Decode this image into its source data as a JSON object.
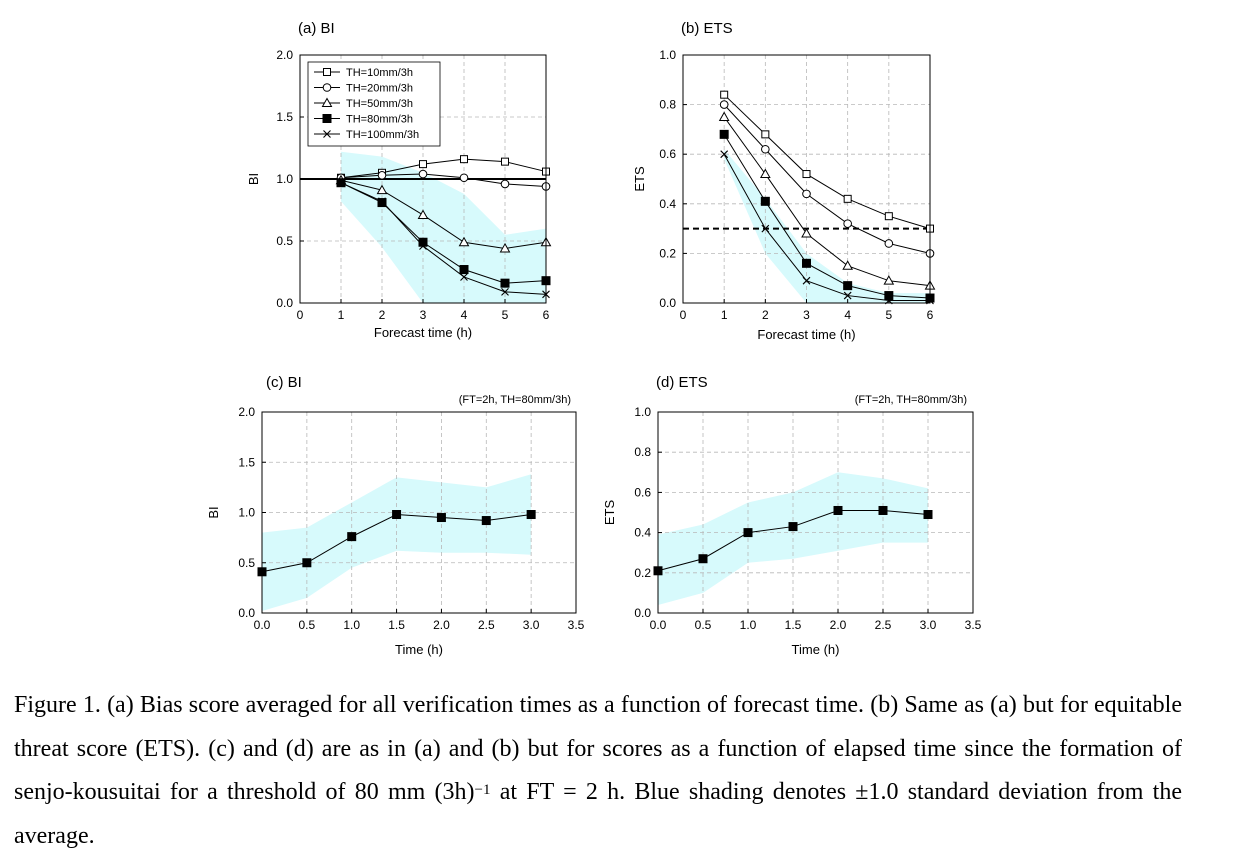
{
  "chart_data": [
    {
      "type": "line",
      "title": "(a) BI",
      "xlabel": "Forecast time (h)",
      "ylabel": "BI",
      "xlim": [
        0,
        6
      ],
      "ylim": [
        0,
        2
      ],
      "xticks": [
        "0",
        "1",
        "2",
        "3",
        "4",
        "5",
        "6"
      ],
      "yticks": [
        "0.0",
        "0.5",
        "1.0",
        "1.5",
        "2.0"
      ],
      "grid": true,
      "legend": "top-left",
      "x": [
        1,
        2,
        3,
        4,
        5,
        6
      ],
      "reference_line": 1.0,
      "shading": {
        "x": [
          1,
          2,
          3,
          4,
          5,
          6
        ],
        "upper": [
          1.22,
          1.18,
          1.05,
          0.88,
          0.55,
          0.6
        ],
        "lower": [
          0.82,
          0.45,
          0.0,
          0.0,
          0.0,
          0.0
        ],
        "color": "#d7fafc"
      },
      "series": [
        {
          "name": "TH=10mm/3h",
          "marker": "square-open",
          "values": [
            1.01,
            1.05,
            1.12,
            1.16,
            1.14,
            1.06
          ]
        },
        {
          "name": "TH=20mm/3h",
          "marker": "circle-open",
          "values": [
            1.01,
            1.03,
            1.04,
            1.01,
            0.96,
            0.94
          ]
        },
        {
          "name": "TH=50mm/3h",
          "marker": "triangle-open",
          "values": [
            0.99,
            0.91,
            0.71,
            0.49,
            0.44,
            0.49
          ]
        },
        {
          "name": "TH=80mm/3h",
          "marker": "square-filled",
          "values": [
            0.97,
            0.81,
            0.49,
            0.27,
            0.16,
            0.18
          ]
        },
        {
          "name": "TH=100mm/3h",
          "marker": "x",
          "values": [
            0.97,
            0.82,
            0.46,
            0.21,
            0.09,
            0.07
          ]
        }
      ]
    },
    {
      "type": "line",
      "title": "(b) ETS",
      "xlabel": "Forecast time (h)",
      "ylabel": "ETS",
      "xlim": [
        0,
        6
      ],
      "ylim": [
        0,
        1
      ],
      "xticks": [
        "0",
        "1",
        "2",
        "3",
        "4",
        "5",
        "6"
      ],
      "yticks": [
        "0.0",
        "0.2",
        "0.4",
        "0.6",
        "0.8",
        "1.0"
      ],
      "grid": true,
      "x": [
        1,
        2,
        3,
        4,
        5,
        6
      ],
      "reference_line": 0.3,
      "shading": {
        "x": [
          1,
          2,
          3,
          4,
          5,
          6
        ],
        "upper": [
          0.62,
          0.42,
          0.2,
          0.08,
          0.04,
          0.04
        ],
        "lower": [
          0.58,
          0.2,
          0.0,
          0.0,
          0.0,
          0.0
        ],
        "color": "#d7fafc"
      },
      "series": [
        {
          "name": "TH=10mm/3h",
          "marker": "square-open",
          "values": [
            0.84,
            0.68,
            0.52,
            0.42,
            0.35,
            0.3
          ]
        },
        {
          "name": "TH=20mm/3h",
          "marker": "circle-open",
          "values": [
            0.8,
            0.62,
            0.44,
            0.32,
            0.24,
            0.2
          ]
        },
        {
          "name": "TH=50mm/3h",
          "marker": "triangle-open",
          "values": [
            0.75,
            0.52,
            0.28,
            0.15,
            0.09,
            0.07
          ]
        },
        {
          "name": "TH=80mm/3h",
          "marker": "square-filled",
          "values": [
            0.68,
            0.41,
            0.16,
            0.07,
            0.03,
            0.02
          ]
        },
        {
          "name": "TH=100mm/3h",
          "marker": "x",
          "values": [
            0.6,
            0.3,
            0.09,
            0.03,
            0.01,
            0.01
          ]
        }
      ]
    },
    {
      "type": "line",
      "title": "(c) BI",
      "note": "(FT=2h, TH=80mm/3h)",
      "xlabel": "Time (h)",
      "ylabel": "BI",
      "xlim": [
        0,
        3.5
      ],
      "ylim": [
        0,
        2
      ],
      "xticks": [
        "0.0",
        "0.5",
        "1.0",
        "1.5",
        "2.0",
        "2.5",
        "3.0",
        "3.5"
      ],
      "yticks": [
        "0.0",
        "0.5",
        "1.0",
        "1.5",
        "2.0"
      ],
      "grid": true,
      "x": [
        0,
        0.5,
        1.0,
        1.5,
        2.0,
        2.5,
        3.0
      ],
      "shading": {
        "x": [
          0,
          0.5,
          1.0,
          1.5,
          2.0,
          2.5,
          3.0
        ],
        "upper": [
          0.8,
          0.85,
          1.1,
          1.35,
          1.3,
          1.25,
          1.38
        ],
        "lower": [
          0.02,
          0.15,
          0.45,
          0.62,
          0.6,
          0.6,
          0.58
        ],
        "color": "#d7fafc"
      },
      "series": [
        {
          "marker": "square-filled",
          "values": [
            0.41,
            0.5,
            0.76,
            0.98,
            0.95,
            0.92,
            0.98
          ]
        }
      ]
    },
    {
      "type": "line",
      "title": "(d) ETS",
      "note": "(FT=2h, TH=80mm/3h)",
      "xlabel": "Time (h)",
      "ylabel": "ETS",
      "xlim": [
        0,
        3.5
      ],
      "ylim": [
        0,
        1
      ],
      "xticks": [
        "0.0",
        "0.5",
        "1.0",
        "1.5",
        "2.0",
        "2.5",
        "3.0",
        "3.5"
      ],
      "yticks": [
        "0.0",
        "0.2",
        "0.4",
        "0.6",
        "0.8",
        "1.0"
      ],
      "grid": true,
      "x": [
        0,
        0.5,
        1.0,
        1.5,
        2.0,
        2.5,
        3.0
      ],
      "shading": {
        "x": [
          0,
          0.5,
          1.0,
          1.5,
          2.0,
          2.5,
          3.0
        ],
        "upper": [
          0.39,
          0.44,
          0.55,
          0.6,
          0.7,
          0.67,
          0.62
        ],
        "lower": [
          0.04,
          0.1,
          0.25,
          0.27,
          0.31,
          0.35,
          0.35
        ],
        "color": "#d7fafc"
      },
      "series": [
        {
          "marker": "square-filled",
          "values": [
            0.21,
            0.27,
            0.4,
            0.43,
            0.51,
            0.51,
            0.49
          ]
        }
      ]
    }
  ],
  "caption": {
    "part1": "Figure 1. (a) Bias score averaged for all verification times as a function of forecast time. (b) Same as (a) but for equitable threat score (ETS). (c) and (d) are as in (a) and (b) but for scores as a function of elapsed time since the formation of senjo-kousuitai for a threshold of 80 mm (3h)",
    "superscript": "−1",
    "part2": " at FT = 2 h. Blue shading denotes ±1.0 standard deviation from the average."
  }
}
